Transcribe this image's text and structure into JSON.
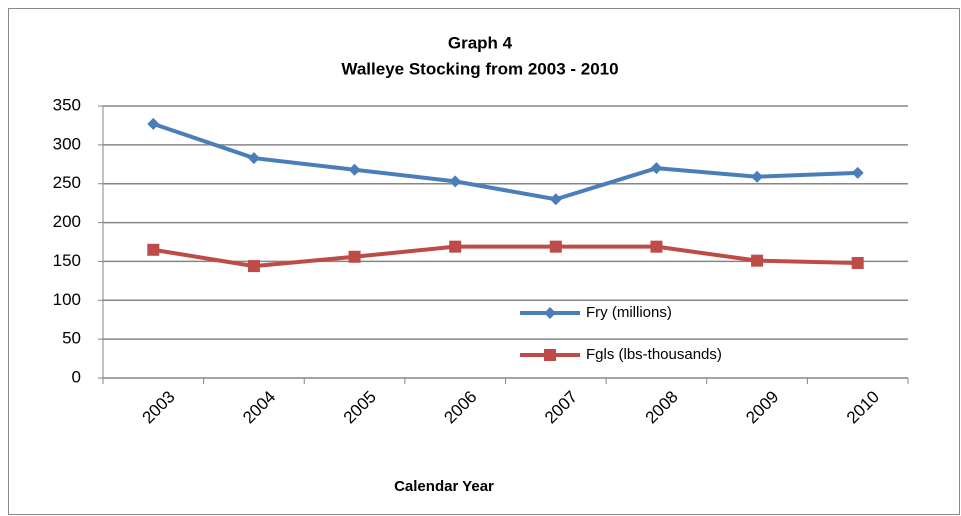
{
  "chart_data": {
    "type": "line",
    "title": "Graph 4",
    "subtitle": "Walleye Stocking  from 2003 - 2010",
    "x_label": "Calendar Year",
    "categories": [
      "2003",
      "2004",
      "2005",
      "2006",
      "2007",
      "2008",
      "2009",
      "2010"
    ],
    "series": [
      {
        "name": "Fry (millions)",
        "color": "#4a7ebb",
        "marker": "diamond",
        "values": [
          327,
          283,
          268,
          253,
          230,
          270,
          259,
          264
        ]
      },
      {
        "name": "Fgls (lbs-thousands)",
        "color": "#be4b48",
        "marker": "square",
        "values": [
          165,
          144,
          156,
          169,
          169,
          169,
          151,
          148
        ]
      }
    ],
    "ylim": [
      0,
      350
    ],
    "yticks": [
      0,
      50,
      100,
      150,
      200,
      250,
      300,
      350
    ],
    "grid": true,
    "legend": "lower right"
  }
}
